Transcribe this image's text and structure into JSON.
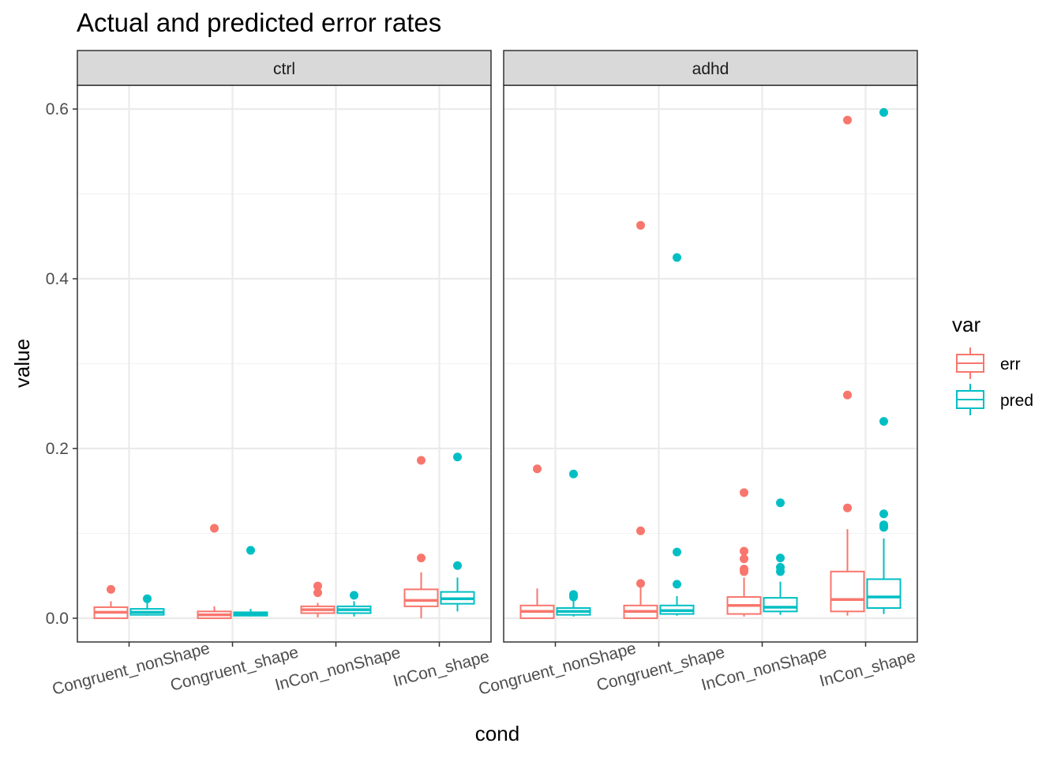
{
  "chart_data": {
    "type": "boxplot",
    "title": "Actual and predicted error rates",
    "xlabel": "cond",
    "ylabel": "value",
    "ylim": [
      -0.028,
      0.628
    ],
    "yticks": [
      0.0,
      0.2,
      0.4,
      0.6
    ],
    "ytick_labels": [
      "0.0",
      "0.2",
      "0.4",
      "0.6"
    ],
    "categories": [
      "Congruent_nonShape",
      "Congruent_shape",
      "InCon_nonShape",
      "InCon_shape"
    ],
    "legend": {
      "title": "var",
      "position": "right",
      "items": [
        {
          "key": "err",
          "label": "err",
          "color": "#F8766D"
        },
        {
          "key": "pred",
          "label": "pred",
          "color": "#00BFC4"
        }
      ]
    },
    "grid": true,
    "facets": [
      {
        "label": "ctrl",
        "boxes": [
          {
            "cond": "Congruent_nonShape",
            "var": "err",
            "q1": 0.0,
            "median": 0.007,
            "q3": 0.013,
            "whisker_low": 0.0,
            "whisker_high": 0.02,
            "outliers": [
              0.034
            ]
          },
          {
            "cond": "Congruent_nonShape",
            "var": "pred",
            "q1": 0.004,
            "median": 0.007,
            "q3": 0.011,
            "whisker_low": 0.003,
            "whisker_high": 0.018,
            "outliers": [
              0.023
            ]
          },
          {
            "cond": "Congruent_shape",
            "var": "err",
            "q1": 0.0,
            "median": 0.004,
            "q3": 0.008,
            "whisker_low": 0.0,
            "whisker_high": 0.014,
            "outliers": [
              0.106
            ]
          },
          {
            "cond": "Congruent_shape",
            "var": "pred",
            "q1": 0.003,
            "median": 0.005,
            "q3": 0.007,
            "whisker_low": 0.002,
            "whisker_high": 0.011,
            "outliers": [
              0.08
            ]
          },
          {
            "cond": "InCon_nonShape",
            "var": "err",
            "q1": 0.006,
            "median": 0.01,
            "q3": 0.014,
            "whisker_low": 0.001,
            "whisker_high": 0.018,
            "outliers": [
              0.03,
              0.038
            ]
          },
          {
            "cond": "InCon_nonShape",
            "var": "pred",
            "q1": 0.006,
            "median": 0.01,
            "q3": 0.014,
            "whisker_low": 0.002,
            "whisker_high": 0.02,
            "outliers": [
              0.027
            ]
          },
          {
            "cond": "InCon_shape",
            "var": "err",
            "q1": 0.014,
            "median": 0.021,
            "q3": 0.034,
            "whisker_low": 0.0,
            "whisker_high": 0.054,
            "outliers": [
              0.071,
              0.186
            ]
          },
          {
            "cond": "InCon_shape",
            "var": "pred",
            "q1": 0.017,
            "median": 0.023,
            "q3": 0.031,
            "whisker_low": 0.008,
            "whisker_high": 0.048,
            "outliers": [
              0.062,
              0.19
            ]
          }
        ]
      },
      {
        "label": "adhd",
        "boxes": [
          {
            "cond": "Congruent_nonShape",
            "var": "err",
            "q1": 0.0,
            "median": 0.008,
            "q3": 0.015,
            "whisker_low": 0.0,
            "whisker_high": 0.035,
            "outliers": [
              0.176
            ]
          },
          {
            "cond": "Congruent_nonShape",
            "var": "pred",
            "q1": 0.004,
            "median": 0.008,
            "q3": 0.012,
            "whisker_low": 0.002,
            "whisker_high": 0.02,
            "outliers": [
              0.025,
              0.028,
              0.17
            ]
          },
          {
            "cond": "Congruent_shape",
            "var": "err",
            "q1": 0.0,
            "median": 0.008,
            "q3": 0.015,
            "whisker_low": 0.0,
            "whisker_high": 0.036,
            "outliers": [
              0.041,
              0.103,
              0.463
            ]
          },
          {
            "cond": "Congruent_shape",
            "var": "pred",
            "q1": 0.005,
            "median": 0.009,
            "q3": 0.015,
            "whisker_low": 0.003,
            "whisker_high": 0.026,
            "outliers": [
              0.04,
              0.078,
              0.425
            ]
          },
          {
            "cond": "InCon_nonShape",
            "var": "err",
            "q1": 0.005,
            "median": 0.015,
            "q3": 0.025,
            "whisker_low": 0.002,
            "whisker_high": 0.048,
            "outliers": [
              0.055,
              0.058,
              0.07,
              0.079,
              0.148
            ]
          },
          {
            "cond": "InCon_nonShape",
            "var": "pred",
            "q1": 0.008,
            "median": 0.013,
            "q3": 0.024,
            "whisker_low": 0.004,
            "whisker_high": 0.043,
            "outliers": [
              0.055,
              0.06,
              0.071,
              0.136
            ]
          },
          {
            "cond": "InCon_shape",
            "var": "err",
            "q1": 0.008,
            "median": 0.022,
            "q3": 0.055,
            "whisker_low": 0.003,
            "whisker_high": 0.105,
            "outliers": [
              0.13,
              0.263,
              0.587
            ]
          },
          {
            "cond": "InCon_shape",
            "var": "pred",
            "q1": 0.012,
            "median": 0.025,
            "q3": 0.046,
            "whisker_low": 0.005,
            "whisker_high": 0.094,
            "outliers": [
              0.107,
              0.11,
              0.123,
              0.232,
              0.596
            ]
          }
        ]
      }
    ]
  }
}
